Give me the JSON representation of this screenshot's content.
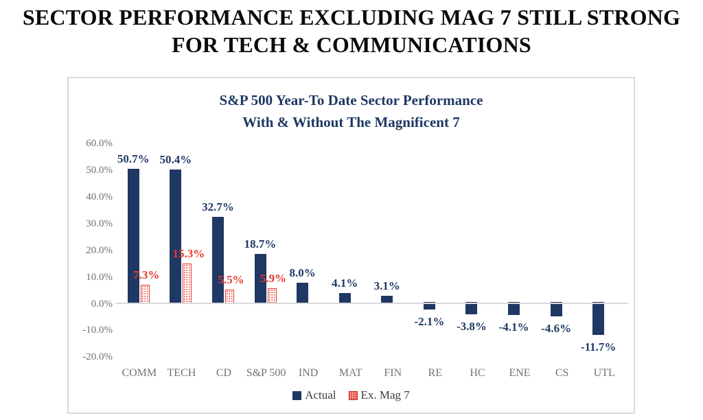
{
  "header": {
    "title_line1": "SECTOR PERFORMANCE EXCLUDING MAG 7 STILL STRONG",
    "title_line2": "FOR TECH & COMMUNICATIONS"
  },
  "chart_data": {
    "type": "bar",
    "title_line1": "S&P 500 Year-To Date Sector Performance",
    "title_line2": "With & Without The Magnificent 7",
    "categories": [
      "COMM",
      "TECH",
      "CD",
      "S&P 500",
      "IND",
      "MAT",
      "FIN",
      "RE",
      "HC",
      "ENE",
      "CS",
      "UTL"
    ],
    "series": [
      {
        "name": "Actual",
        "color": "#1F3864",
        "pattern": "solid",
        "values": [
          50.7,
          50.4,
          32.7,
          18.7,
          8.0,
          4.1,
          3.1,
          -2.1,
          -3.8,
          -4.1,
          -4.6,
          -11.7
        ]
      },
      {
        "name": "Ex. Mag 7",
        "color": "#E8392E",
        "pattern": "dotted",
        "values": [
          7.3,
          15.3,
          5.5,
          5.9,
          null,
          null,
          null,
          null,
          null,
          null,
          null,
          null
        ]
      }
    ],
    "value_label_suffix": "%",
    "ylim": [
      -20,
      60
    ],
    "ytick_step": 10,
    "ytick_labels": [
      "60.0%",
      "50.0%",
      "40.0%",
      "30.0%",
      "20.0%",
      "10.0%",
      "0.0%",
      "-10.0%",
      "-20.0%"
    ],
    "grid": false,
    "legend_position": "bottom",
    "axis_line_color": "#d9d9d9",
    "tick_label_color": "#767171"
  }
}
